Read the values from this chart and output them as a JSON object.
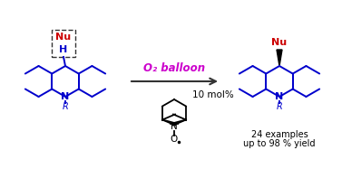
{
  "bg_color": "#ffffff",
  "arrow_color": "#333333",
  "blue_color": "#0000cc",
  "red_color": "#cc0000",
  "magenta_color": "#cc00cc",
  "black_color": "#000000",
  "tempo_label": "10 mol%",
  "o2_label": "O₂ balloon",
  "yield_line1": "24 examples",
  "yield_line2": "up to 98 % yield"
}
